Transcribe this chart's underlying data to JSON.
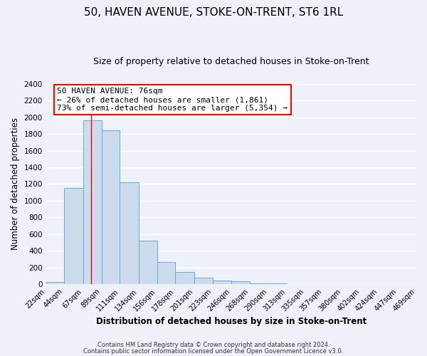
{
  "title": "50, HAVEN AVENUE, STOKE-ON-TRENT, ST6 1RL",
  "subtitle": "Size of property relative to detached houses in Stoke-on-Trent",
  "xlabel": "Distribution of detached houses by size in Stoke-on-Trent",
  "ylabel": "Number of detached properties",
  "bar_color": "#ccdcee",
  "bar_edge_color": "#6aaad4",
  "bins": [
    22,
    44,
    67,
    89,
    111,
    134,
    156,
    178,
    201,
    223,
    246,
    268,
    290,
    313,
    335,
    357,
    380,
    402,
    424,
    447,
    469
  ],
  "bin_labels": [
    "22sqm",
    "44sqm",
    "67sqm",
    "89sqm",
    "111sqm",
    "134sqm",
    "156sqm",
    "178sqm",
    "201sqm",
    "223sqm",
    "246sqm",
    "268sqm",
    "290sqm",
    "313sqm",
    "335sqm",
    "357sqm",
    "380sqm",
    "402sqm",
    "424sqm",
    "447sqm",
    "469sqm"
  ],
  "values": [
    25,
    1150,
    1960,
    1840,
    1220,
    520,
    265,
    148,
    75,
    45,
    35,
    10,
    8,
    5,
    3,
    2,
    2,
    1,
    1,
    1
  ],
  "red_line_x": 76,
  "ylim": [
    0,
    2400
  ],
  "yticks": [
    0,
    200,
    400,
    600,
    800,
    1000,
    1200,
    1400,
    1600,
    1800,
    2000,
    2200,
    2400
  ],
  "annotation_title": "50 HAVEN AVENUE: 76sqm",
  "annotation_line1": "← 26% of detached houses are smaller (1,861)",
  "annotation_line2": "73% of semi-detached houses are larger (5,354) →",
  "footer1": "Contains HM Land Registry data © Crown copyright and database right 2024.",
  "footer2": "Contains public sector information licensed under the Open Government Licence v3.0.",
  "bg_color": "#eef2f8",
  "plot_bg_color": "#eef2f8",
  "grid_color": "#ffffff",
  "title_fontsize": 11,
  "subtitle_fontsize": 9,
  "axis_label_fontsize": 8.5
}
